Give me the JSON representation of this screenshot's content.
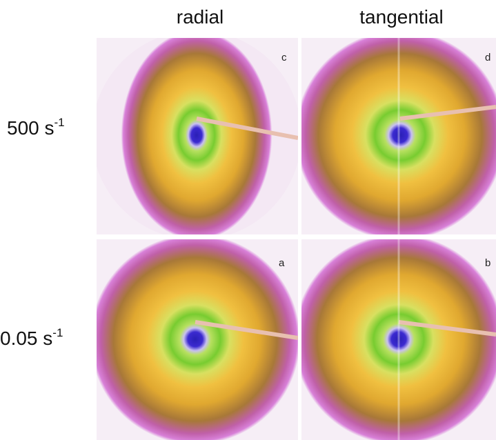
{
  "columns": [
    "radial",
    "tangential"
  ],
  "rows": [
    {
      "label": "500 s",
      "exponent": "-1"
    },
    {
      "label": "0.05 s",
      "exponent": "-1"
    }
  ],
  "panels": [
    "c",
    "d",
    "a",
    "b"
  ]
}
